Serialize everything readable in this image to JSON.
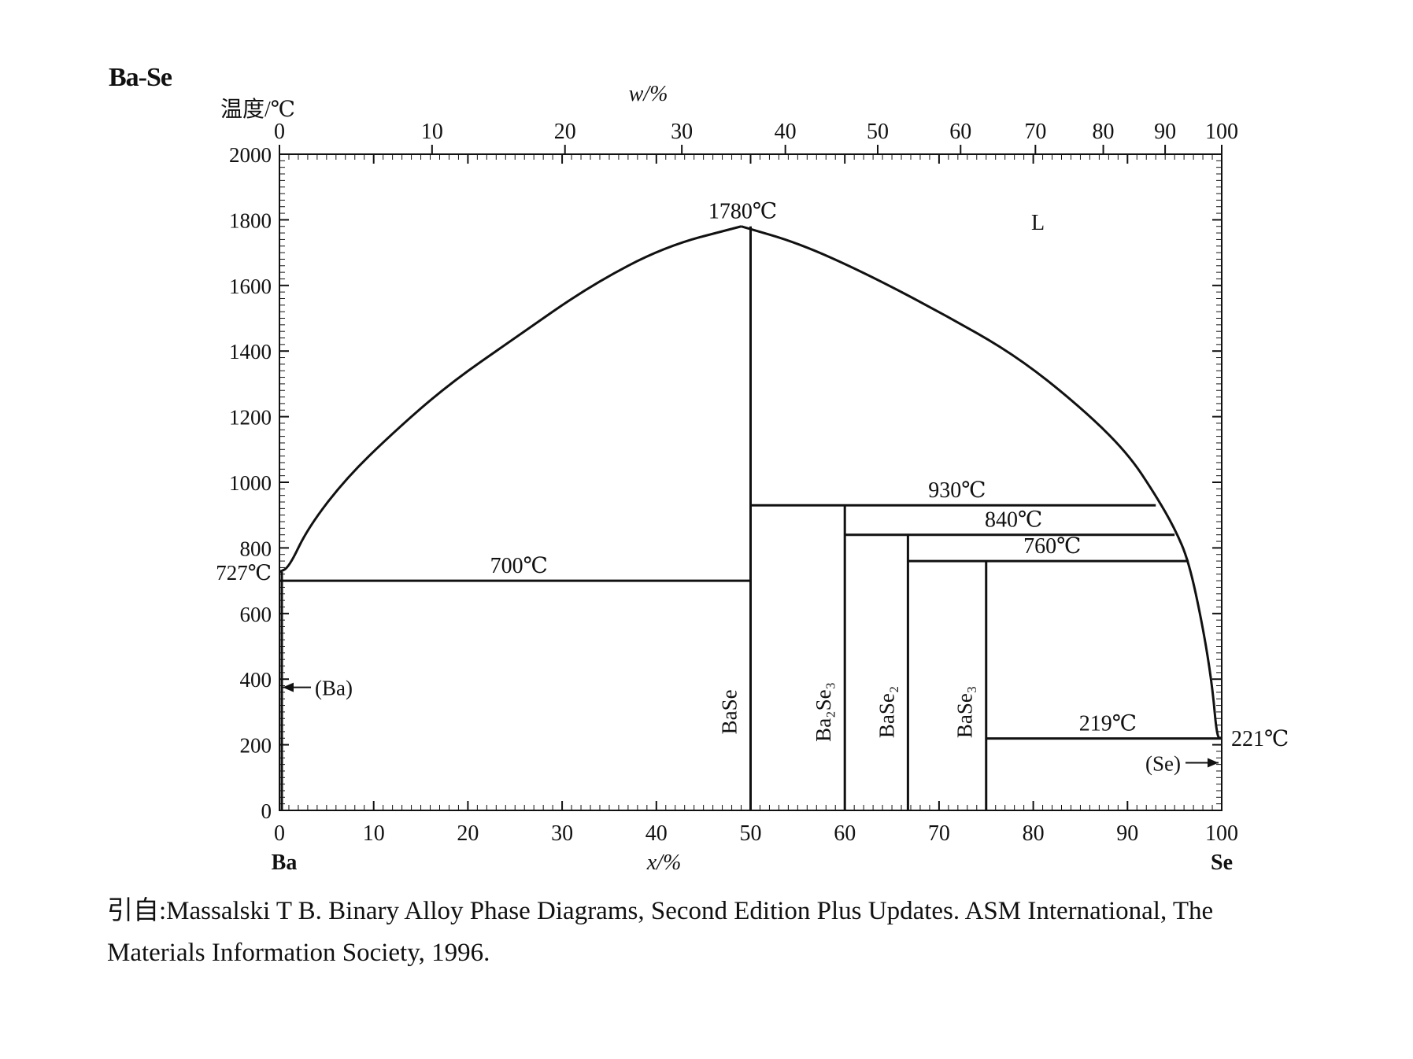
{
  "title": "Ba-Se",
  "caption": {
    "line1": "引自:Massalski T B.  Binary Alloy Phase Diagrams, Second Edition Plus Updates.  ASM International, The",
    "line2": "Materials Information Society, 1996."
  },
  "chart_data": {
    "type": "phase-diagram",
    "ylabel": "温度/℃",
    "xlabel_bottom": "x/%",
    "xlabel_top": "w/%",
    "left_component": "Ba",
    "right_component": "Se",
    "ylim": [
      0,
      2000
    ],
    "xlim": [
      0,
      100
    ],
    "y_ticks": [
      0,
      200,
      400,
      600,
      800,
      1000,
      1200,
      1400,
      1600,
      1800,
      2000
    ],
    "x_ticks_bottom": [
      0,
      10,
      20,
      30,
      40,
      50,
      60,
      70,
      80,
      90,
      100
    ],
    "x_ticks_top": [
      0,
      10,
      20,
      30,
      40,
      50,
      60,
      70,
      80,
      90,
      100
    ],
    "liquidus_left": [
      [
        0,
        727
      ],
      [
        1,
        740
      ],
      [
        3,
        860
      ],
      [
        7,
        1010
      ],
      [
        12,
        1150
      ],
      [
        18,
        1300
      ],
      [
        25,
        1440
      ],
      [
        33,
        1600
      ],
      [
        41,
        1720
      ],
      [
        49,
        1780
      ]
    ],
    "liquidus_right": [
      [
        49,
        1780
      ],
      [
        55,
        1730
      ],
      [
        62,
        1640
      ],
      [
        70,
        1520
      ],
      [
        78,
        1390
      ],
      [
        85,
        1230
      ],
      [
        90,
        1090
      ],
      [
        93,
        960
      ],
      [
        95,
        860
      ],
      [
        96.5,
        760
      ],
      [
        98,
        560
      ],
      [
        99,
        380
      ],
      [
        99.5,
        221
      ],
      [
        100,
        221
      ]
    ],
    "compounds": [
      {
        "name": "BaSe",
        "x": 50
      },
      {
        "name": "Ba₂Se₃",
        "x": 60
      },
      {
        "name": "BaSe₂",
        "x": 66.7
      },
      {
        "name": "BaSe₃",
        "x": 75
      }
    ],
    "reactions": [
      {
        "label": "700℃",
        "T": 700,
        "x1": 0,
        "x2": 50
      },
      {
        "label": "930℃",
        "T": 930,
        "x1": 50,
        "x2": 93
      },
      {
        "label": "840℃",
        "T": 840,
        "x1": 60,
        "x2": 95
      },
      {
        "label": "760℃",
        "T": 760,
        "x1": 66.7,
        "x2": 96.5
      },
      {
        "label": "219℃",
        "T": 219,
        "x1": 75,
        "x2": 100
      }
    ],
    "annotations": {
      "max_melt": "1780℃",
      "ba_melt": "727℃",
      "se_melt": "221℃",
      "liquid": "L",
      "ba_phase": "(Ba)",
      "se_phase": "(Se)"
    }
  }
}
